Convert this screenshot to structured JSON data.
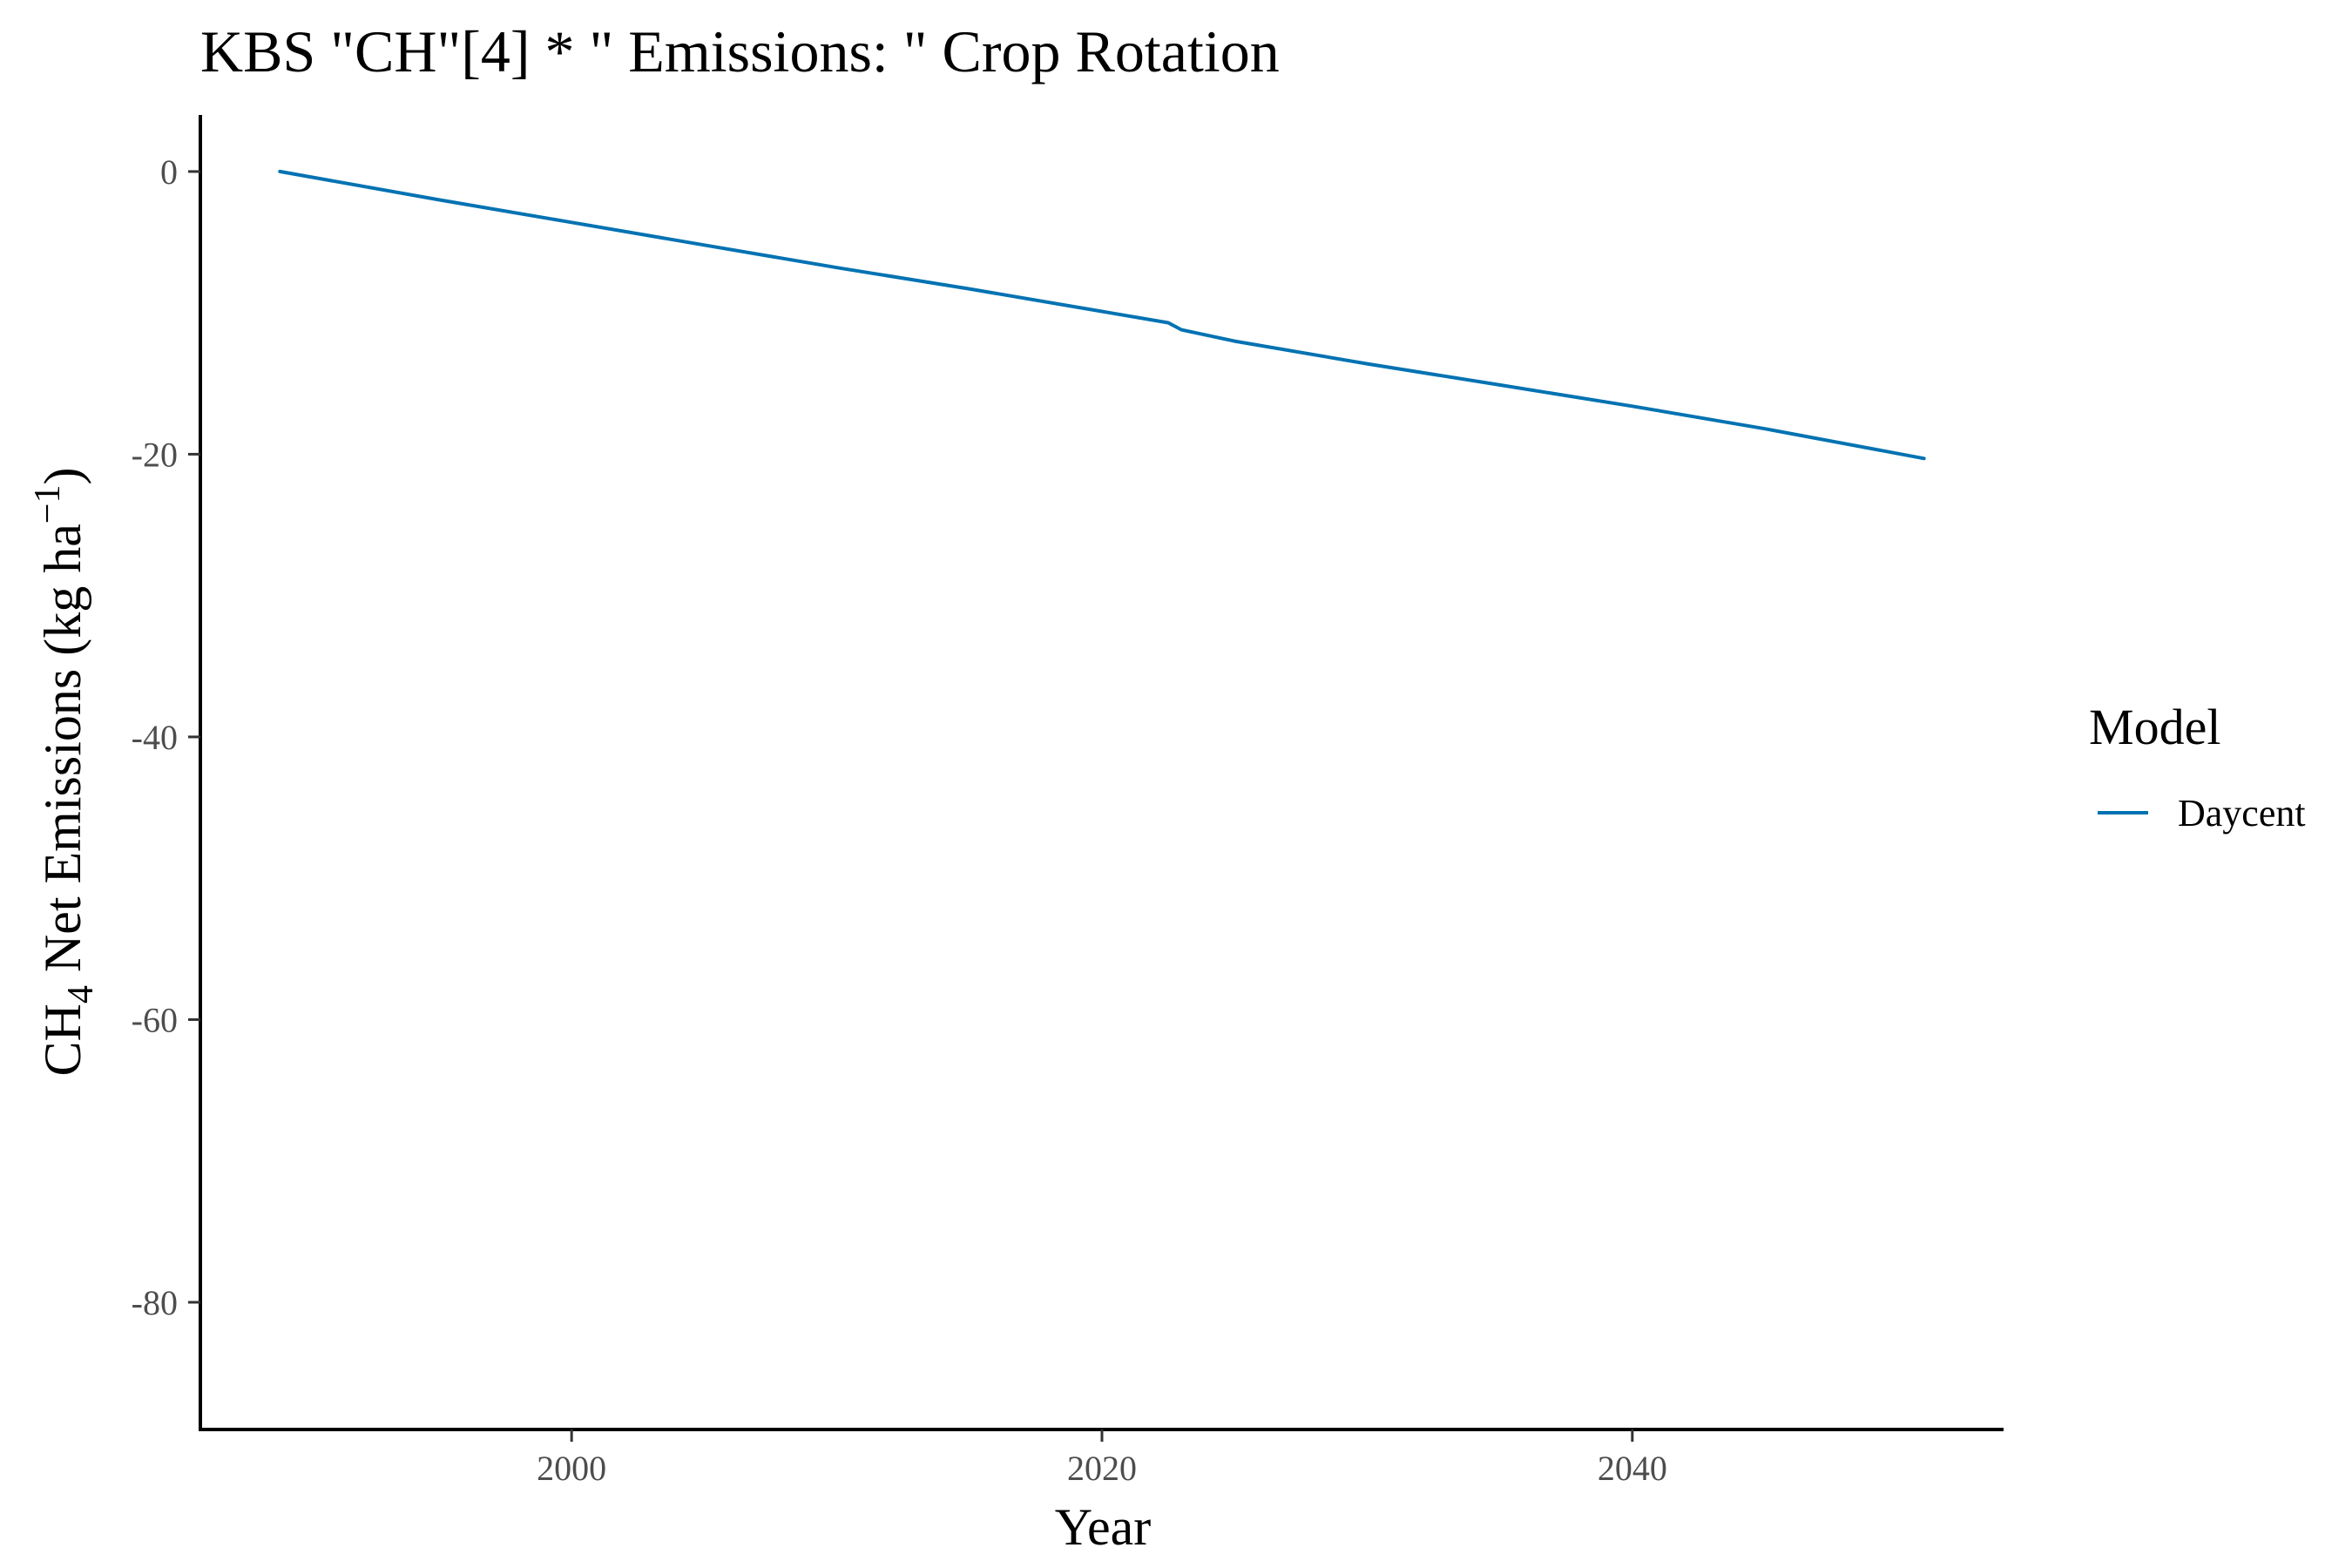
{
  "chart_data": {
    "type": "line",
    "title": "KBS \"CH\"[4] * \" Emissions: \" Crop Rotation",
    "xlabel": "Year",
    "ylabel": {
      "prefix": "CH",
      "subscript": "4",
      "middle": " Net Emissions (kg ha",
      "superscript": "−1",
      "suffix": ")"
    },
    "xlim": [
      1986,
      2054
    ],
    "ylim": [
      -89,
      4
    ],
    "x_ticks": [
      2000,
      2020,
      2040
    ],
    "y_ticks": [
      0,
      -20,
      -40,
      -60,
      -80
    ],
    "grid": false,
    "legend": {
      "title": "Model",
      "position": "right"
    },
    "series": [
      {
        "name": "Daycent",
        "color": "#0072B2",
        "x": [
          1989,
          1995,
          2000,
          2005,
          2010,
          2015,
          2020,
          2022.5,
          2023,
          2025,
          2030,
          2035,
          2040,
          2045,
          2051
        ],
        "y": [
          0,
          -2,
          -3.6,
          -5.2,
          -6.8,
          -8.3,
          -9.9,
          -10.7,
          -11.2,
          -12.0,
          -13.6,
          -15.1,
          -16.6,
          -18.2,
          -20.3
        ]
      }
    ]
  }
}
